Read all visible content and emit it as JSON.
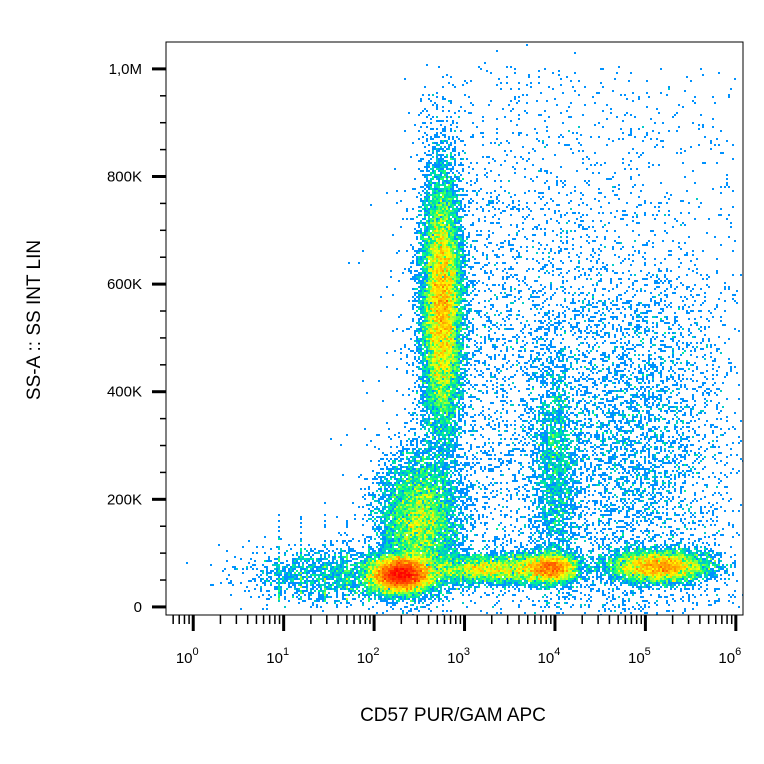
{
  "chart_data": {
    "type": "scatter",
    "subtype": "flow-cytometry-density-plot",
    "xlabel": "CD57 PUR/GAM APC",
    "ylabel": "SS-A :: SS INT LIN",
    "x_scale": "log",
    "y_scale": "linear",
    "xlim": [
      0.5,
      1200000
    ],
    "ylim": [
      -15000,
      1050000
    ],
    "x_ticks": [
      {
        "value": 1,
        "base": "10",
        "exp": "0"
      },
      {
        "value": 10,
        "base": "10",
        "exp": "1"
      },
      {
        "value": 100,
        "base": "10",
        "exp": "2"
      },
      {
        "value": 1000,
        "base": "10",
        "exp": "3"
      },
      {
        "value": 10000,
        "base": "10",
        "exp": "4"
      },
      {
        "value": 100000,
        "base": "10",
        "exp": "5"
      },
      {
        "value": 1000000,
        "base": "10",
        "exp": "6"
      }
    ],
    "y_ticks": [
      {
        "value": 0,
        "label": "0"
      },
      {
        "value": 200000,
        "label": "200K"
      },
      {
        "value": 400000,
        "label": "400K"
      },
      {
        "value": 600000,
        "label": "600K"
      },
      {
        "value": 800000,
        "label": "800K"
      },
      {
        "value": 1000000,
        "label": "1,0M"
      }
    ],
    "grid": false,
    "legend": "none",
    "colormap": [
      "#0000ff",
      "#00a0ff",
      "#00ff80",
      "#ffff00",
      "#ff8000",
      "#ff0000"
    ],
    "populations": [
      {
        "x": 200,
        "y": 60000,
        "peak": "red"
      },
      {
        "x": 600,
        "y": 550000,
        "peak": "yellow"
      },
      {
        "x": 300,
        "y": 150000,
        "peak": "green"
      },
      {
        "x": 10000,
        "y": 70000,
        "peak": "yellow-green"
      },
      {
        "x": 150000,
        "y": 75000,
        "peak": "orange"
      }
    ]
  }
}
